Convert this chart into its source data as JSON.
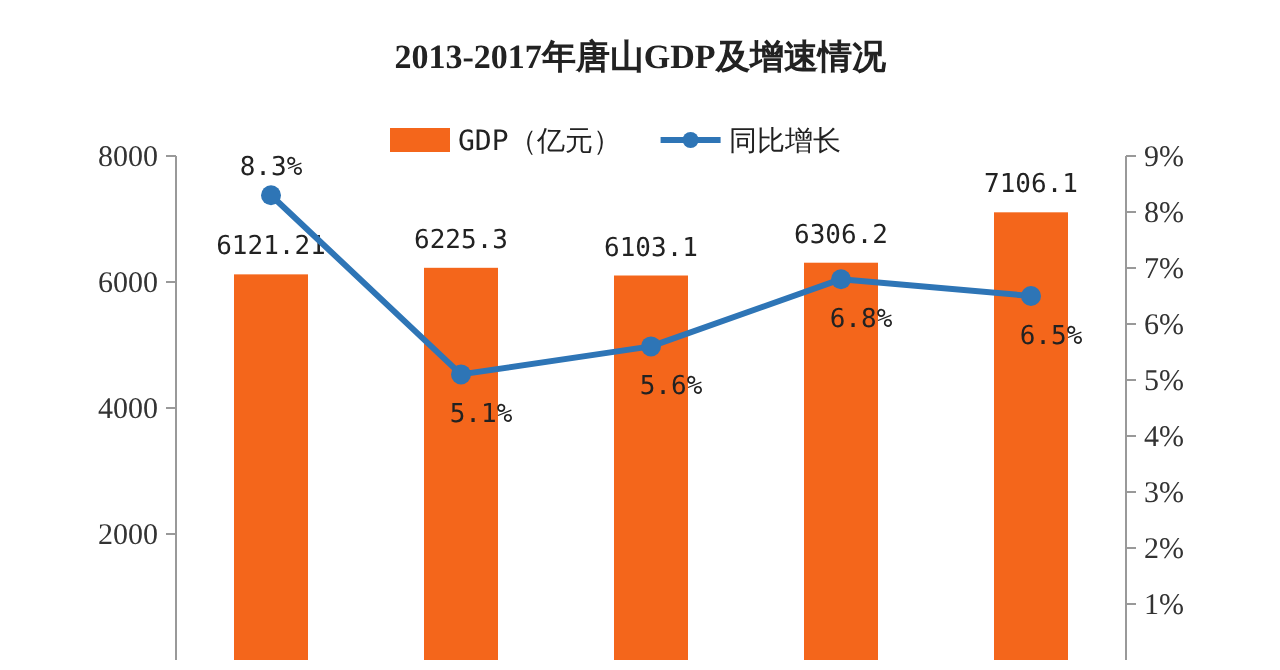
{
  "chart_data": [
    {
      "type": "bar",
      "title": "2013-2017年唐山GDP及增速情况",
      "categories": [
        null,
        null,
        null,
        null,
        null
      ],
      "series": [
        {
          "name": "GDP（亿元）",
          "color": "#f4661b",
          "values": [
            6121.21,
            6225.3,
            6103.1,
            6306.2,
            7106.1
          ],
          "value_labels": [
            "6121.21",
            "6225.3",
            "6103.1",
            "6306.2",
            "7106.1"
          ]
        }
      ],
      "ylim": [
        0,
        8000
      ],
      "yticks": [
        2000,
        4000,
        6000,
        8000
      ],
      "legend": "top",
      "grid": false
    },
    {
      "type": "line",
      "categories": [
        null,
        null,
        null,
        null,
        null
      ],
      "series": [
        {
          "name": "同比增长",
          "color": "#2e75b6",
          "values": [
            8.3,
            5.1,
            5.6,
            6.8,
            6.5
          ],
          "value_labels": [
            "8.3%",
            "5.1%",
            "5.6%",
            "6.8%",
            "6.5%"
          ]
        }
      ],
      "ylim": [
        0,
        9
      ],
      "yticks": [
        {
          "value": 1,
          "label": "1%"
        },
        {
          "value": 2,
          "label": "2%"
        },
        {
          "value": 3,
          "label": "3%"
        },
        {
          "value": 4,
          "label": "4%"
        },
        {
          "value": 5,
          "label": "5%"
        },
        {
          "value": 6,
          "label": "6%"
        },
        {
          "value": 7,
          "label": "7%"
        },
        {
          "value": 8,
          "label": "8%"
        },
        {
          "value": 9,
          "label": "9%"
        }
      ],
      "legend": "top",
      "marker": "circle",
      "grid": false
    }
  ]
}
